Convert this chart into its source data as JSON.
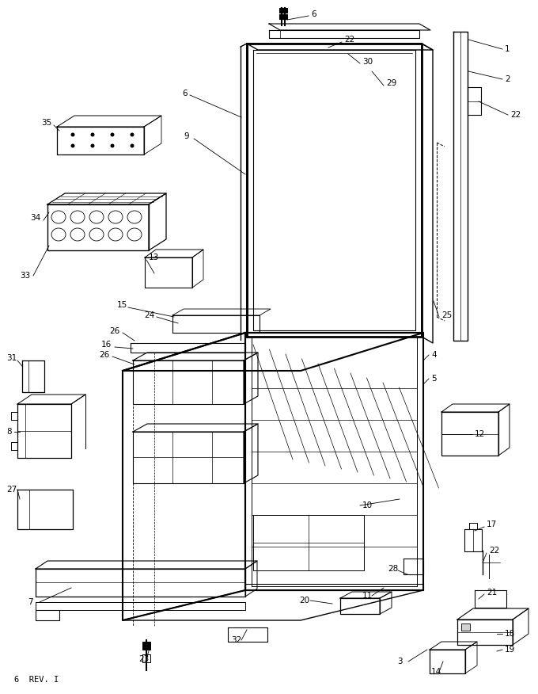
{
  "bg_color": "#ffffff",
  "line_color": "#000000",
  "fig_width": 6.8,
  "fig_height": 8.76,
  "dpi": 100,
  "footer_text": "6  REV. I"
}
